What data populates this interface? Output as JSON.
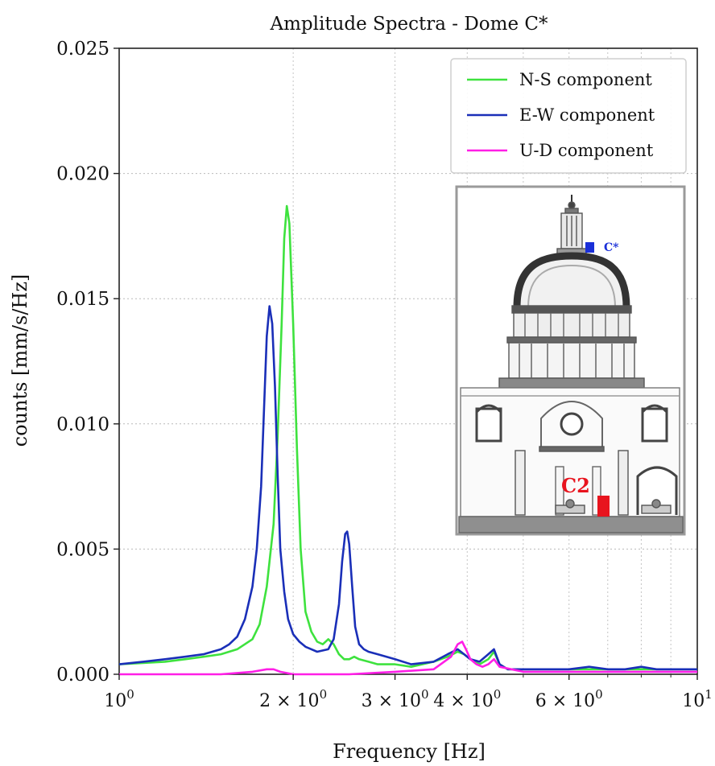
{
  "chart_data": {
    "type": "line",
    "title": "Amplitude Spectra - Dome C*",
    "xlabel": "Frequency [Hz]",
    "ylabel": "counts [mm/s/Hz]",
    "xscale": "log",
    "xlim": [
      1,
      10
    ],
    "ylim": [
      0,
      0.025
    ],
    "grid": true,
    "legend_position": "top-right",
    "yticks": [
      {
        "value": 0.0,
        "label": "0.000"
      },
      {
        "value": 0.005,
        "label": "0.005"
      },
      {
        "value": 0.01,
        "label": "0.010"
      },
      {
        "value": 0.015,
        "label": "0.015"
      },
      {
        "value": 0.02,
        "label": "0.020"
      },
      {
        "value": 0.025,
        "label": "0.025"
      }
    ],
    "xticks": [
      {
        "value": 1,
        "base": "10",
        "exp": "0"
      },
      {
        "value": 2,
        "base": "2 × 10",
        "exp": "0"
      },
      {
        "value": 3,
        "base": "3 × 10",
        "exp": "0"
      },
      {
        "value": 4,
        "base": "4 × 10",
        "exp": "0"
      },
      {
        "value": 6,
        "base": "6 × 10",
        "exp": "0"
      },
      {
        "value": 10,
        "base": "10",
        "exp": "1"
      }
    ],
    "series": [
      {
        "name": "N-S component",
        "color": "#3ee23e",
        "x": [
          1.0,
          1.1,
          1.2,
          1.3,
          1.4,
          1.5,
          1.6,
          1.7,
          1.75,
          1.8,
          1.85,
          1.88,
          1.91,
          1.93,
          1.95,
          1.97,
          2.0,
          2.03,
          2.06,
          2.1,
          2.15,
          2.2,
          2.25,
          2.3,
          2.35,
          2.4,
          2.45,
          2.5,
          2.55,
          2.6,
          2.7,
          2.8,
          3.0,
          3.2,
          3.5,
          3.7,
          3.85,
          3.95,
          4.05,
          4.2,
          4.35,
          4.45,
          4.55,
          4.7,
          5.0,
          5.5,
          6.0,
          7.0,
          8.0,
          9.0,
          10.0
        ],
        "y": [
          0.0004,
          0.00045,
          0.0005,
          0.0006,
          0.0007,
          0.0008,
          0.001,
          0.0014,
          0.002,
          0.0035,
          0.006,
          0.0095,
          0.014,
          0.0174,
          0.0187,
          0.018,
          0.014,
          0.009,
          0.005,
          0.0025,
          0.0017,
          0.0013,
          0.0012,
          0.0014,
          0.0012,
          0.0008,
          0.0006,
          0.0006,
          0.0007,
          0.0006,
          0.0005,
          0.0004,
          0.0004,
          0.0003,
          0.0005,
          0.0007,
          0.0009,
          0.0008,
          0.0006,
          0.0004,
          0.0006,
          0.0009,
          0.0004,
          0.0002,
          0.0002,
          0.0002,
          0.0002,
          0.0002,
          0.0002,
          0.0002,
          0.0002
        ]
      },
      {
        "name": "E-W component",
        "color": "#1a2fb8",
        "x": [
          1.0,
          1.1,
          1.2,
          1.3,
          1.4,
          1.5,
          1.55,
          1.6,
          1.65,
          1.7,
          1.73,
          1.76,
          1.78,
          1.8,
          1.82,
          1.84,
          1.86,
          1.88,
          1.9,
          1.93,
          1.96,
          2.0,
          2.05,
          2.1,
          2.2,
          2.3,
          2.35,
          2.4,
          2.43,
          2.46,
          2.48,
          2.5,
          2.53,
          2.56,
          2.6,
          2.65,
          2.7,
          2.8,
          3.0,
          3.2,
          3.5,
          3.7,
          3.85,
          3.95,
          4.05,
          4.2,
          4.35,
          4.45,
          4.55,
          4.7,
          5.0,
          5.5,
          6.0,
          6.5,
          7.0,
          7.5,
          8.0,
          8.5,
          9.0,
          10.0
        ],
        "y": [
          0.0004,
          0.0005,
          0.0006,
          0.0007,
          0.0008,
          0.001,
          0.0012,
          0.0015,
          0.0022,
          0.0035,
          0.005,
          0.0075,
          0.0105,
          0.0135,
          0.0147,
          0.014,
          0.0115,
          0.008,
          0.005,
          0.0033,
          0.0022,
          0.0016,
          0.0013,
          0.0011,
          0.0009,
          0.001,
          0.0014,
          0.0028,
          0.0045,
          0.0056,
          0.0057,
          0.0052,
          0.0035,
          0.0019,
          0.0012,
          0.001,
          0.0009,
          0.0008,
          0.0006,
          0.0004,
          0.0005,
          0.0008,
          0.001,
          0.0008,
          0.0006,
          0.0005,
          0.0008,
          0.001,
          0.0004,
          0.0002,
          0.0002,
          0.0002,
          0.0002,
          0.0003,
          0.0002,
          0.0002,
          0.0003,
          0.0002,
          0.0002,
          0.0002
        ]
      },
      {
        "name": "U-D component",
        "color": "#ff1ee6",
        "x": [
          1.0,
          1.5,
          1.7,
          1.8,
          1.85,
          1.9,
          2.0,
          2.5,
          3.0,
          3.5,
          3.75,
          3.85,
          3.92,
          3.98,
          4.05,
          4.15,
          4.25,
          4.35,
          4.45,
          4.55,
          5.0,
          6.0,
          7.0,
          8.0,
          9.0,
          10.0
        ],
        "y": [
          0.0,
          0.0,
          0.0001,
          0.0002,
          0.0002,
          0.0001,
          0.0,
          0.0,
          0.0001,
          0.0002,
          0.0007,
          0.0012,
          0.0013,
          0.001,
          0.0006,
          0.0004,
          0.0003,
          0.0004,
          0.0006,
          0.0003,
          0.0001,
          0.0001,
          0.0001,
          0.0001,
          0.0001,
          0.0001
        ]
      }
    ],
    "inset": {
      "labels": {
        "top_marker": "C*",
        "bottom_marker": "C2"
      },
      "marker_colors": {
        "top_marker": "#1a2fd8",
        "bottom_marker": "#e8141e"
      }
    }
  }
}
